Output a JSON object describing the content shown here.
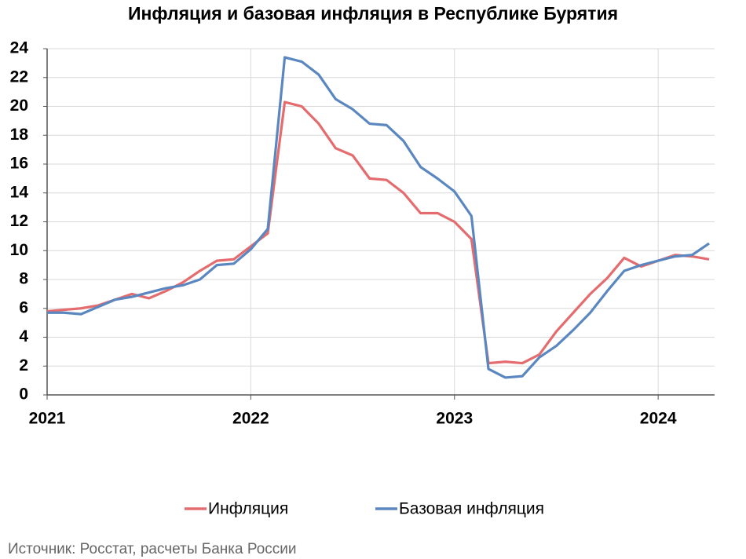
{
  "chart_data": {
    "type": "line",
    "title": "Инфляция и базовая инфляция в Республике Бурятия",
    "categories": [
      "2021",
      null,
      null,
      null,
      null,
      null,
      null,
      null,
      null,
      null,
      null,
      null,
      "2022",
      null,
      null,
      null,
      null,
      null,
      null,
      null,
      null,
      null,
      null,
      null,
      "2023",
      null,
      null,
      null,
      null,
      null,
      null,
      null,
      null,
      null,
      null,
      null,
      "2024",
      null,
      null,
      null
    ],
    "series": [
      {
        "name": "Инфляция",
        "color": "#e46c6e",
        "values": [
          5.8,
          5.9,
          6.0,
          6.2,
          6.6,
          7.0,
          6.7,
          7.2,
          7.8,
          8.6,
          9.3,
          9.4,
          10.3,
          11.2,
          20.3,
          20.0,
          18.8,
          17.1,
          16.6,
          15.0,
          14.9,
          14.0,
          12.6,
          12.6,
          12.0,
          10.8,
          2.2,
          2.3,
          2.2,
          2.8,
          4.4,
          5.7,
          7.0,
          8.1,
          9.5,
          8.9,
          9.3,
          9.7,
          9.6,
          9.4
        ]
      },
      {
        "name": "Базовая инфляция",
        "color": "#5b87c0",
        "values": [
          5.7,
          5.7,
          5.6,
          6.1,
          6.6,
          6.8,
          7.1,
          7.4,
          7.6,
          8.0,
          9.0,
          9.1,
          10.1,
          11.5,
          23.4,
          23.1,
          22.2,
          20.5,
          19.8,
          18.8,
          18.7,
          17.6,
          15.8,
          15.0,
          14.1,
          12.4,
          1.8,
          1.2,
          1.3,
          2.6,
          3.4,
          4.5,
          5.7,
          7.2,
          8.6,
          9.0,
          9.3,
          9.6,
          9.7,
          10.5
        ]
      }
    ],
    "ylim": [
      0,
      24
    ],
    "yticks": [
      0,
      2,
      4,
      6,
      8,
      10,
      12,
      14,
      16,
      18,
      20,
      22,
      24
    ],
    "grid": true,
    "source": "Источник: Росстат, расчеты Банка России"
  }
}
